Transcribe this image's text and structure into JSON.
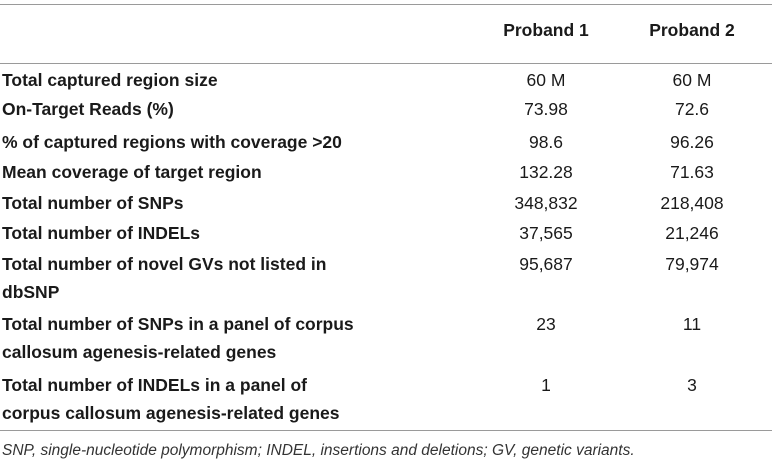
{
  "header": {
    "col1": "Proband 1",
    "col2": "Proband 2"
  },
  "rows": [
    {
      "label_lines": [
        "Total captured region size"
      ],
      "p1": "60 M",
      "p2": "60 M"
    },
    {
      "label_lines": [
        "On-Target Reads (%)"
      ],
      "p1": "73.98",
      "p2": "72.6"
    },
    {
      "label_lines": [
        "% of captured regions with coverage >20"
      ],
      "p1": "98.6",
      "p2": "96.26"
    },
    {
      "label_lines": [
        "Mean coverage of target region"
      ],
      "p1": "132.28",
      "p2": "71.63"
    },
    {
      "label_lines": [
        "Total number of SNPs"
      ],
      "p1": "348,832",
      "p2": "218,408"
    },
    {
      "label_lines": [
        "Total number of INDELs"
      ],
      "p1": "37,565",
      "p2": "21,246"
    },
    {
      "label_lines": [
        "Total number of novel GVs not listed in",
        "dbSNP"
      ],
      "p1": "95,687",
      "p2": "79,974"
    },
    {
      "label_lines": [
        "Total number of SNPs in a panel of corpus",
        "callosum agenesis-related genes"
      ],
      "p1": "23",
      "p2": "11"
    },
    {
      "label_lines": [
        "Total number of INDELs in a panel of",
        "corpus callosum agenesis-related genes"
      ],
      "p1": "1",
      "p2": "3"
    }
  ],
  "footnote": "SNP, single-nucleotide polymorphism; INDEL, insertions and deletions; GV, genetic variants."
}
